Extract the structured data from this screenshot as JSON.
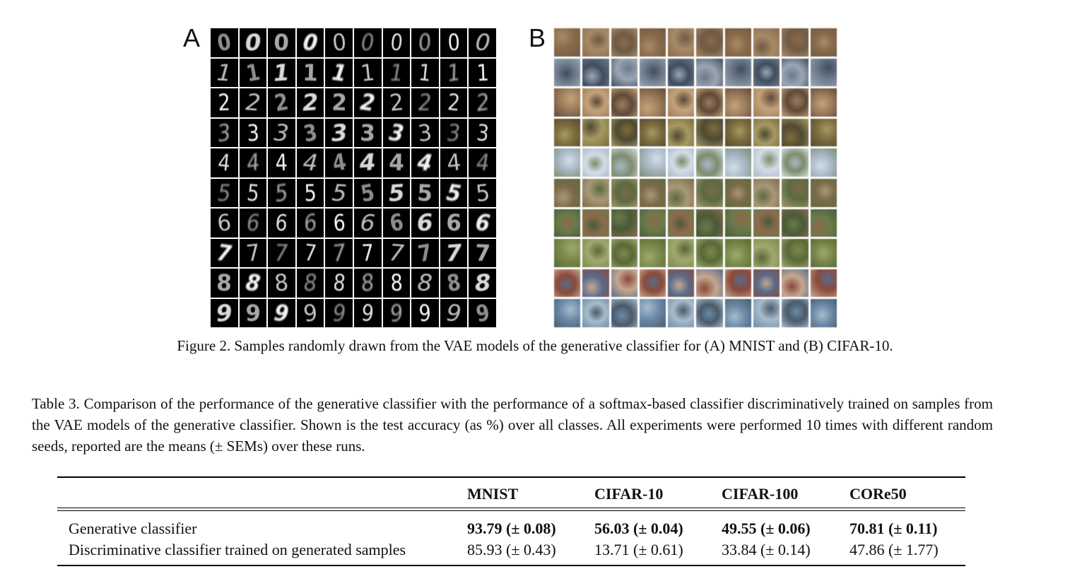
{
  "figure": {
    "panel_a_label": "A",
    "panel_b_label": "B",
    "mnist_digits": [
      "0",
      "1",
      "2",
      "3",
      "4",
      "5",
      "6",
      "7",
      "8",
      "9"
    ],
    "caption": "Figure 2. Samples randomly drawn from the VAE models of the generative classifier for (A) MNIST and (B) CIFAR-10."
  },
  "table": {
    "caption": "Table 3. Comparison of the performance of the generative classifier with the performance of a softmax-based classifier discriminatively trained on samples from the VAE models of the generative classifier. Shown is the test accuracy (as %) over all classes. All experiments were performed 10 times with different random seeds, reported are the means (± SEMs) over these runs.",
    "columns": [
      "",
      "MNIST",
      "CIFAR-10",
      "CIFAR-100",
      "CORe50"
    ],
    "rows": [
      {
        "label": "Generative classifier",
        "values": [
          "93.79 (± 0.08)",
          "56.03 (± 0.04)",
          "49.55 (± 0.06)",
          "70.81 (± 0.11)"
        ],
        "bold": true
      },
      {
        "label": "Discriminative classifier trained on generated samples",
        "values": [
          "85.93 (± 0.43)",
          "13.71 (± 0.61)",
          "33.84 (± 0.14)",
          "47.86 (± 1.77)"
        ],
        "bold": false
      }
    ]
  },
  "colors": {
    "text": "#111111",
    "rule": "#000000",
    "mnist_background": "#000000",
    "mnist_digit": "#ffffff"
  },
  "cifar_palette": [
    [
      "#8a6a4a",
      "#a78b67",
      "#6f5a44"
    ],
    [
      "#6c7a8a",
      "#3f4d5f",
      "#9aa6b4"
    ],
    [
      "#9c7c5c",
      "#c4a27a",
      "#5e4a38"
    ],
    [
      "#7d6b3e",
      "#a59a63",
      "#4f4a32"
    ],
    [
      "#a8b8c8",
      "#d4dde6",
      "#7c8c6c"
    ],
    [
      "#7a6a4a",
      "#a89878",
      "#5c6a3e"
    ],
    [
      "#6a7a4a",
      "#8b6b4b",
      "#4a5a3a"
    ],
    [
      "#7a8a4a",
      "#a0a870",
      "#5a6838"
    ],
    [
      "#8a4a3a",
      "#5a6a8a",
      "#c4a890"
    ],
    [
      "#6a8aa8",
      "#a8bccc",
      "#4a5a6a"
    ]
  ]
}
